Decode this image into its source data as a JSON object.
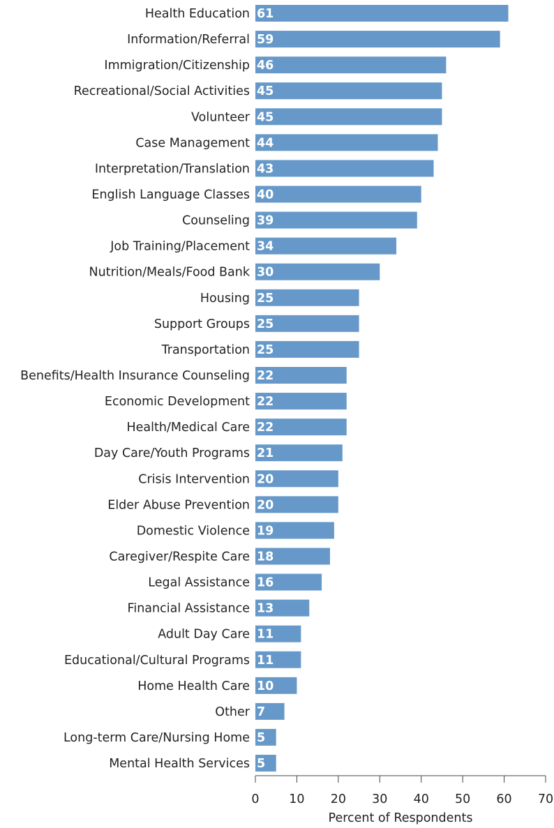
{
  "chart_data": {
    "type": "bar",
    "orientation": "horizontal",
    "categories": [
      "Health Education",
      "Information/Referral",
      "Immigration/Citizenship",
      "Recreational/Social Activities",
      "Volunteer",
      "Case Management",
      "Interpretation/Translation",
      "English Language Classes",
      "Counseling",
      "Job Training/Placement",
      "Nutrition/Meals/Food Bank",
      "Housing",
      "Support Groups",
      "Transportation",
      "Benefits/Health Insurance Counseling",
      "Economic Development",
      "Health/Medical Care",
      "Day Care/Youth Programs",
      "Crisis Intervention",
      "Elder Abuse Prevention",
      "Domestic Violence",
      "Caregiver/Respite Care",
      "Legal Assistance",
      "Financial Assistance",
      "Adult Day Care",
      "Educational/Cultural Programs",
      "Home Health Care",
      "Other",
      "Long-term Care/Nursing Home",
      "Mental Health Services"
    ],
    "values": [
      61,
      59,
      46,
      45,
      45,
      44,
      43,
      40,
      39,
      34,
      30,
      25,
      25,
      25,
      22,
      22,
      22,
      21,
      20,
      20,
      19,
      18,
      16,
      13,
      11,
      11,
      10,
      7,
      5,
      5
    ],
    "color": "#6699c9",
    "xlabel": "Percent of Respondents",
    "xlim": [
      0,
      70
    ],
    "xticks": [
      0,
      10,
      20,
      30,
      40,
      50,
      60,
      70
    ]
  }
}
